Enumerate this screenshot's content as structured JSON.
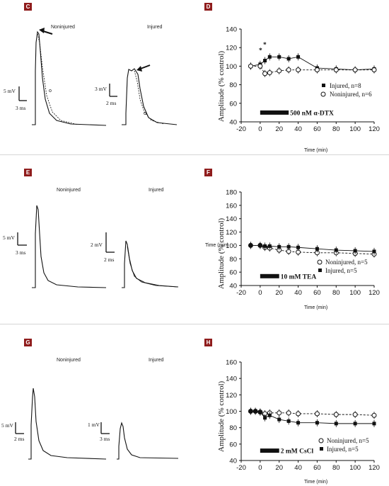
{
  "panels": {
    "C": {
      "letter": "C",
      "trace_titles": [
        "Noninjured",
        "Injured"
      ],
      "scale_labels": [
        "5 mV",
        "3 ms",
        "3 mV",
        "2 ms"
      ]
    },
    "E": {
      "letter": "E",
      "trace_titles": [
        "Noninjured",
        "Injured"
      ],
      "scale_labels": [
        "5 mV",
        "3 ms",
        "2 mV",
        "2 ms"
      ]
    },
    "G": {
      "letter": "G",
      "trace_titles": [
        "Noninjured",
        "Injured"
      ],
      "scale_labels": [
        "5 mV",
        "2 ms",
        "1 mV",
        "3 ms"
      ]
    }
  },
  "colors": {
    "badge": "#8f1c1c",
    "series": "#111111",
    "divider": "#d6d6d6"
  },
  "chart_data": [
    {
      "panel": "D",
      "type": "line",
      "xlabel": "Time (min)",
      "ylabel": "Amplitude (% control)",
      "xlim": [
        -20,
        120
      ],
      "ylim": [
        40,
        140
      ],
      "x_ticks": [
        "-20",
        "0",
        "20",
        "40",
        "60",
        "80",
        "100",
        "120"
      ],
      "y_ticks": [
        "40",
        "60",
        "80",
        "100",
        "120",
        "140"
      ],
      "treatment": {
        "label": "500 nM α-DTX",
        "x_range": [
          0,
          30
        ]
      },
      "annotations": [
        "*",
        "*"
      ],
      "legend_position": "right",
      "series": [
        {
          "name": "Injured, n=8",
          "marker": "filled-square",
          "x": [
            -10,
            0,
            5,
            10,
            20,
            30,
            40,
            60,
            80,
            100,
            120
          ],
          "y": [
            100,
            102,
            106,
            110,
            110,
            108,
            110,
            98,
            97,
            96,
            97
          ]
        },
        {
          "name": "Noninjured, n=6",
          "marker": "open-circle",
          "x": [
            -10,
            0,
            5,
            10,
            20,
            30,
            40,
            60,
            80,
            100,
            120
          ],
          "y": [
            100,
            100,
            92,
            93,
            95,
            96,
            96,
            96,
            96,
            96,
            96
          ]
        }
      ]
    },
    {
      "panel": "F",
      "type": "line",
      "xlabel": "Time (min)",
      "ylabel": "Amplitude (% control)",
      "xlim": [
        -20,
        120
      ],
      "ylim": [
        40,
        180
      ],
      "x_ticks": [
        "-20",
        "0",
        "20",
        "40",
        "60",
        "80",
        "100",
        "120"
      ],
      "y_ticks": [
        "40",
        "60",
        "80",
        "100",
        "120",
        "140",
        "160",
        "180"
      ],
      "treatment": {
        "label": "10 mM TEA",
        "x_range": [
          0,
          20
        ]
      },
      "stray_text": "Time (min)",
      "legend_position": "right",
      "series": [
        {
          "name": "Noninjured, n=5",
          "marker": "open-circle",
          "x": [
            -10,
            0,
            5,
            10,
            20,
            30,
            40,
            60,
            80,
            100,
            120
          ],
          "y": [
            100,
            100,
            97,
            96,
            93,
            91,
            90,
            89,
            89,
            88,
            87
          ]
        },
        {
          "name": "Injured, n=5",
          "marker": "filled-square",
          "x": [
            -10,
            0,
            5,
            10,
            20,
            30,
            40,
            60,
            80,
            100,
            120
          ],
          "y": [
            100,
            100,
            99,
            99,
            98,
            98,
            97,
            95,
            93,
            92,
            91
          ]
        }
      ]
    },
    {
      "panel": "H",
      "type": "line",
      "xlabel": "Time (min)",
      "ylabel": "Amplitude (% control)",
      "xlim": [
        -20,
        120
      ],
      "ylim": [
        40,
        160
      ],
      "x_ticks": [
        "-20",
        "0",
        "20",
        "40",
        "60",
        "80",
        "100",
        "120"
      ],
      "y_ticks": [
        "40",
        "60",
        "80",
        "100",
        "120",
        "140",
        "160"
      ],
      "treatment": {
        "label": "2 mM CsCl",
        "x_range": [
          0,
          20
        ]
      },
      "legend_position": "right",
      "series": [
        {
          "name": "Noninjured, n=5",
          "marker": "open-circle",
          "x": [
            -10,
            -5,
            0,
            5,
            10,
            20,
            30,
            40,
            60,
            80,
            100,
            120
          ],
          "y": [
            100,
            100,
            99,
            97,
            98,
            98,
            98,
            97,
            97,
            96,
            96,
            95
          ]
        },
        {
          "name": "Injured, n=5",
          "marker": "filled-square",
          "x": [
            -10,
            -5,
            0,
            5,
            10,
            20,
            30,
            40,
            60,
            80,
            100,
            120
          ],
          "y": [
            100,
            100,
            99,
            92,
            95,
            90,
            88,
            86,
            86,
            85,
            85,
            85
          ]
        }
      ]
    }
  ]
}
